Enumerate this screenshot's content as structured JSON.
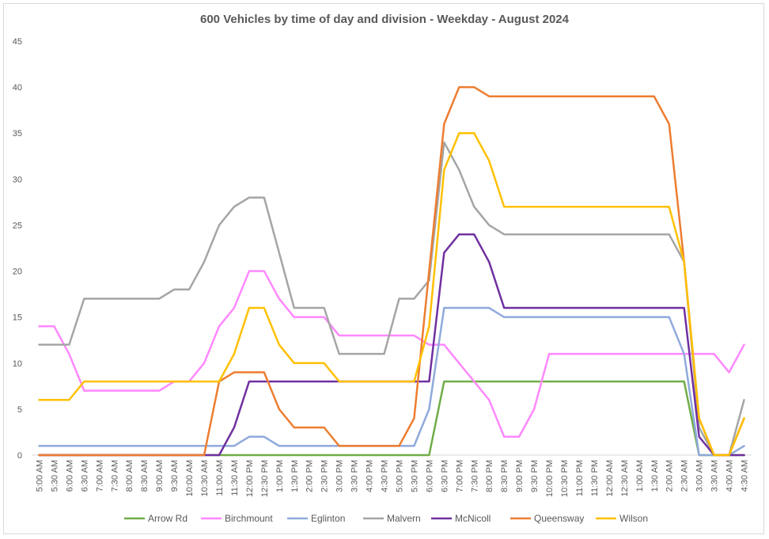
{
  "chart_data": {
    "type": "line",
    "title": "600 Vehicles by time of day and division - Weekday - August 2024",
    "xlabel": "",
    "ylabel": "",
    "ylim": [
      0,
      45
    ],
    "yticks": [
      0,
      5,
      10,
      15,
      20,
      25,
      30,
      35,
      40,
      45
    ],
    "grid": false,
    "legend_position": "bottom",
    "categories": [
      "5:00 AM",
      "5:30 AM",
      "6:00 AM",
      "6:30 AM",
      "7:00 AM",
      "7:30 AM",
      "8:00 AM",
      "8:30 AM",
      "9:00 AM",
      "9:30 AM",
      "10:00 AM",
      "10:30 AM",
      "11:00 AM",
      "11:30 AM",
      "12:00 PM",
      "12:30 PM",
      "1:00 PM",
      "1:30 PM",
      "2:00 PM",
      "2:30 PM",
      "3:00 PM",
      "3:30 PM",
      "4:00 PM",
      "4:30 PM",
      "5:00 PM",
      "5:30 PM",
      "6:00 PM",
      "6:30 PM",
      "7:00 PM",
      "7:30 PM",
      "8:00 PM",
      "8:30 PM",
      "9:00 PM",
      "9:30 PM",
      "10:00 PM",
      "10:30 PM",
      "11:00 PM",
      "11:30 PM",
      "12:00 AM",
      "12:30 AM",
      "1:00 AM",
      "1:30 AM",
      "2:00 AM",
      "2:30 AM",
      "3:00 AM",
      "3:30 AM",
      "4:00 AM",
      "4:30 AM"
    ],
    "series": [
      {
        "name": "Arrow Rd",
        "color": "#70ad47",
        "values": [
          0,
          0,
          0,
          0,
          0,
          0,
          0,
          0,
          0,
          0,
          0,
          0,
          0,
          0,
          0,
          0,
          0,
          0,
          0,
          0,
          0,
          0,
          0,
          0,
          0,
          0,
          0,
          8,
          8,
          8,
          8,
          8,
          8,
          8,
          8,
          8,
          8,
          8,
          8,
          8,
          8,
          8,
          8,
          8,
          0,
          0,
          0,
          0
        ]
      },
      {
        "name": "Birchmount",
        "color": "#ff88ff",
        "values": [
          14,
          14,
          11,
          7,
          7,
          7,
          7,
          7,
          7,
          8,
          8,
          10,
          14,
          16,
          20,
          20,
          17,
          15,
          15,
          15,
          13,
          13,
          13,
          13,
          13,
          13,
          12,
          12,
          10,
          8,
          6,
          2,
          2,
          5,
          11,
          11,
          11,
          11,
          11,
          11,
          11,
          11,
          11,
          11,
          11,
          11,
          9,
          12
        ]
      },
      {
        "name": "Eglinton",
        "color": "#8faadc",
        "values": [
          1,
          1,
          1,
          1,
          1,
          1,
          1,
          1,
          1,
          1,
          1,
          1,
          1,
          1,
          2,
          2,
          1,
          1,
          1,
          1,
          1,
          1,
          1,
          1,
          1,
          1,
          5,
          16,
          16,
          16,
          16,
          15,
          15,
          15,
          15,
          15,
          15,
          15,
          15,
          15,
          15,
          15,
          15,
          11,
          0,
          0,
          0,
          1
        ]
      },
      {
        "name": "Malvern",
        "color": "#a5a5a5",
        "values": [
          12,
          12,
          12,
          17,
          17,
          17,
          17,
          17,
          17,
          18,
          18,
          21,
          25,
          27,
          28,
          28,
          22,
          16,
          16,
          16,
          11,
          11,
          11,
          11,
          17,
          17,
          19,
          34,
          31,
          27,
          25,
          24,
          24,
          24,
          24,
          24,
          24,
          24,
          24,
          24,
          24,
          24,
          24,
          21,
          3,
          0,
          0,
          6
        ]
      },
      {
        "name": "McNicoll",
        "color": "#7030a0",
        "values": [
          0,
          0,
          0,
          0,
          0,
          0,
          0,
          0,
          0,
          0,
          0,
          0,
          0,
          3,
          8,
          8,
          8,
          8,
          8,
          8,
          8,
          8,
          8,
          8,
          8,
          8,
          8,
          22,
          24,
          24,
          21,
          16,
          16,
          16,
          16,
          16,
          16,
          16,
          16,
          16,
          16,
          16,
          16,
          16,
          2,
          0,
          0,
          0
        ]
      },
      {
        "name": "Queensway",
        "color": "#ed7d31",
        "values": [
          0,
          0,
          0,
          0,
          0,
          0,
          0,
          0,
          0,
          0,
          0,
          0,
          8,
          9,
          9,
          9,
          5,
          3,
          3,
          3,
          1,
          1,
          1,
          1,
          1,
          4,
          20,
          36,
          40,
          40,
          39,
          39,
          39,
          39,
          39,
          39,
          39,
          39,
          39,
          39,
          39,
          39,
          36,
          21,
          4,
          0,
          0,
          4
        ]
      },
      {
        "name": "Wilson",
        "color": "#ffc000",
        "values": [
          6,
          6,
          6,
          8,
          8,
          8,
          8,
          8,
          8,
          8,
          8,
          8,
          8,
          11,
          16,
          16,
          12,
          10,
          10,
          10,
          8,
          8,
          8,
          8,
          8,
          8,
          14,
          31,
          35,
          35,
          32,
          27,
          27,
          27,
          27,
          27,
          27,
          27,
          27,
          27,
          27,
          27,
          27,
          21,
          4,
          0,
          0,
          4
        ]
      }
    ]
  }
}
